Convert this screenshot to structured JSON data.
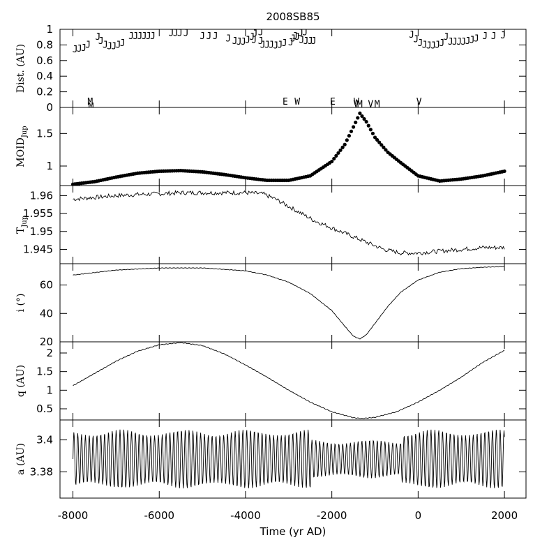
{
  "chart_data": {
    "type": "line",
    "title": "2008SB85",
    "xlabel": "Time (yr AD)",
    "x_range": [
      -8300,
      2500
    ],
    "x_ticks": [
      -8000,
      -6000,
      -4000,
      -2000,
      0,
      2000
    ],
    "x_tick_labels": [
      "-8000",
      "-6000",
      "-4000",
      "-2000",
      "0",
      "2000"
    ],
    "grid": false,
    "panels": [
      {
        "id": "dist",
        "ylabel": "Dist. (AU)",
        "ylim": [
          0,
          1
        ],
        "yticks": [
          0,
          0.2,
          0.4,
          0.6,
          0.8,
          1
        ],
        "ytick_labels": [
          "0",
          "0.2",
          "0.4",
          "0.6",
          "0.8",
          "1"
        ],
        "series": [
          {
            "marker": "J",
            "points": [
              [
                -7950,
                0.74
              ],
              [
                -7850,
                0.75
              ],
              [
                -7750,
                0.76
              ],
              [
                -7650,
                0.8
              ],
              [
                -7420,
                0.9
              ],
              [
                -7350,
                0.85
              ],
              [
                -7250,
                0.8
              ],
              [
                -7150,
                0.78
              ],
              [
                -7050,
                0.78
              ],
              [
                -6950,
                0.8
              ],
              [
                -6850,
                0.82
              ],
              [
                -6650,
                0.91
              ],
              [
                -6550,
                0.91
              ],
              [
                -6450,
                0.91
              ],
              [
                -6350,
                0.91
              ],
              [
                -6250,
                0.91
              ],
              [
                -6150,
                0.91
              ],
              [
                -5720,
                0.95
              ],
              [
                -5620,
                0.95
              ],
              [
                -5520,
                0.95
              ],
              [
                -5380,
                0.95
              ],
              [
                -5000,
                0.91
              ],
              [
                -4850,
                0.91
              ],
              [
                -4700,
                0.91
              ],
              [
                -4400,
                0.88
              ],
              [
                -4250,
                0.85
              ],
              [
                -4150,
                0.84
              ],
              [
                -4050,
                0.84
              ],
              [
                -3950,
                0.86
              ],
              [
                -3850,
                0.9
              ],
              [
                -3780,
                0.94
              ],
              [
                -3650,
                0.96
              ],
              [
                -3800,
                0.86
              ],
              [
                -3650,
                0.85
              ],
              [
                -3600,
                0.8
              ],
              [
                -3500,
                0.8
              ],
              [
                -3400,
                0.8
              ],
              [
                -3300,
                0.79
              ],
              [
                -3200,
                0.8
              ],
              [
                -3100,
                0.82
              ],
              [
                -2950,
                0.83
              ],
              [
                -2900,
                0.88
              ],
              [
                -2850,
                0.91
              ],
              [
                -2800,
                0.9
              ],
              [
                -2700,
                0.86
              ],
              [
                -2600,
                0.85
              ],
              [
                -2500,
                0.85
              ],
              [
                -2420,
                0.85
              ],
              [
                -2720,
                0.95
              ],
              [
                -2620,
                0.96
              ],
              [
                -150,
                0.93
              ],
              [
                -50,
                0.87
              ],
              [
                50,
                0.82
              ],
              [
                150,
                0.8
              ],
              [
                250,
                0.79
              ],
              [
                350,
                0.79
              ],
              [
                450,
                0.8
              ],
              [
                550,
                0.82
              ],
              [
                650,
                0.9
              ],
              [
                750,
                0.84
              ],
              [
                850,
                0.84
              ],
              [
                950,
                0.84
              ],
              [
                1050,
                0.84
              ],
              [
                1150,
                0.85
              ],
              [
                1250,
                0.86
              ],
              [
                1350,
                0.88
              ],
              [
                1550,
                0.91
              ],
              [
                1750,
                0.91
              ],
              [
                1970,
                0.92
              ]
            ]
          },
          {
            "marker": "M",
            "points": [
              [
                -7600,
                0.07
              ],
              [
                -7580,
                0.01
              ],
              [
                -1350,
                0.04
              ],
              [
                -950,
                0.04
              ]
            ]
          },
          {
            "marker": "E",
            "points": [
              [
                -3080,
                0.07
              ],
              [
                -1980,
                0.07
              ]
            ]
          },
          {
            "marker": "W",
            "points": [
              [
                -2800,
                0.07
              ],
              [
                -1430,
                0.07
              ]
            ]
          },
          {
            "marker": "V",
            "points": [
              [
                -1440,
                0.04
              ],
              [
                -1100,
                0.04
              ],
              [
                20,
                0.07
              ]
            ]
          }
        ]
      },
      {
        "id": "moid",
        "ylabel": "MOID",
        "ylabel_sub": "Jup",
        "ylim": [
          0.7,
          1.9
        ],
        "yticks": [
          1,
          1.5
        ],
        "ytick_labels": [
          "1",
          "1.5"
        ],
        "style": "dots",
        "series": [
          {
            "points": [
              [
                -8000,
                0.72
              ],
              [
                -7500,
                0.76
              ],
              [
                -7000,
                0.83
              ],
              [
                -6500,
                0.89
              ],
              [
                -6000,
                0.92
              ],
              [
                -5500,
                0.93
              ],
              [
                -5000,
                0.91
              ],
              [
                -4500,
                0.87
              ],
              [
                -4000,
                0.82
              ],
              [
                -3500,
                0.78
              ],
              [
                -3000,
                0.78
              ],
              [
                -2500,
                0.85
              ],
              [
                -2000,
                1.07
              ],
              [
                -1700,
                1.33
              ],
              [
                -1500,
                1.6
              ],
              [
                -1350,
                1.81
              ],
              [
                -1200,
                1.68
              ],
              [
                -1000,
                1.44
              ],
              [
                -700,
                1.21
              ],
              [
                -400,
                1.05
              ],
              [
                0,
                0.85
              ],
              [
                500,
                0.77
              ],
              [
                1000,
                0.8
              ],
              [
                1500,
                0.85
              ],
              [
                2000,
                0.92
              ]
            ]
          }
        ]
      },
      {
        "id": "tjup",
        "ylabel": "T",
        "ylabel_sub": "Jup",
        "ylim": [
          1.941,
          1.9628
        ],
        "yticks": [
          1.945,
          1.95,
          1.955,
          1.96
        ],
        "ytick_labels": [
          "1.945",
          "1.95",
          "1.955",
          "1.96"
        ],
        "style": "jagged",
        "series": [
          {
            "points": [
              [
                -8000,
                1.959
              ],
              [
                -7500,
                1.9595
              ],
              [
                -7000,
                1.96
              ],
              [
                -6500,
                1.9603
              ],
              [
                -6000,
                1.9605
              ],
              [
                -5500,
                1.9608
              ],
              [
                -5000,
                1.9608
              ],
              [
                -4500,
                1.9608
              ],
              [
                -4000,
                1.9608
              ],
              [
                -3600,
                1.9605
              ],
              [
                -3300,
                1.959
              ],
              [
                -3000,
                1.957
              ],
              [
                -2700,
                1.955
              ],
              [
                -2400,
                1.953
              ],
              [
                -2000,
                1.951
              ],
              [
                -1600,
                1.949
              ],
              [
                -1200,
                1.947
              ],
              [
                -800,
                1.945
              ],
              [
                -400,
                1.944
              ],
              [
                0,
                1.944
              ],
              [
                500,
                1.9445
              ],
              [
                1000,
                1.945
              ],
              [
                1500,
                1.9455
              ],
              [
                2000,
                1.9455
              ]
            ]
          }
        ]
      },
      {
        "id": "incl",
        "ylabel": "i (°)",
        "ylim": [
          20,
          75
        ],
        "yticks": [
          20,
          40,
          60
        ],
        "ytick_labels": [
          "20",
          "40",
          "60"
        ],
        "style": "line",
        "series": [
          {
            "points": [
              [
                -8000,
                67
              ],
              [
                -7000,
                70.5
              ],
              [
                -6000,
                72
              ],
              [
                -5000,
                72
              ],
              [
                -4000,
                70
              ],
              [
                -3500,
                67
              ],
              [
                -3000,
                62
              ],
              [
                -2500,
                54
              ],
              [
                -2000,
                42
              ],
              [
                -1700,
                31
              ],
              [
                -1500,
                24
              ],
              [
                -1350,
                22
              ],
              [
                -1200,
                25
              ],
              [
                -1000,
                33
              ],
              [
                -700,
                45
              ],
              [
                -400,
                55
              ],
              [
                0,
                63.5
              ],
              [
                500,
                69
              ],
              [
                1000,
                71.5
              ],
              [
                1500,
                72.5
              ],
              [
                2000,
                73
              ]
            ]
          }
        ]
      },
      {
        "id": "q",
        "ylabel": "q (AU)",
        "ylim": [
          0.2,
          2.3
        ],
        "yticks": [
          0.5,
          1,
          1.5,
          2
        ],
        "ytick_labels": [
          "0.5",
          "1",
          "1.5",
          "2"
        ],
        "style": "line",
        "series": [
          {
            "points": [
              [
                -8000,
                1.12
              ],
              [
                -7500,
                1.45
              ],
              [
                -7000,
                1.78
              ],
              [
                -6500,
                2.05
              ],
              [
                -6000,
                2.22
              ],
              [
                -5500,
                2.28
              ],
              [
                -5000,
                2.2
              ],
              [
                -4500,
                1.98
              ],
              [
                -4000,
                1.68
              ],
              [
                -3500,
                1.35
              ],
              [
                -3000,
                1.0
              ],
              [
                -2500,
                0.68
              ],
              [
                -2000,
                0.42
              ],
              [
                -1500,
                0.26
              ],
              [
                -1300,
                0.24
              ],
              [
                -1000,
                0.27
              ],
              [
                -500,
                0.42
              ],
              [
                0,
                0.68
              ],
              [
                500,
                1.0
              ],
              [
                1000,
                1.35
              ],
              [
                1500,
                1.75
              ],
              [
                2000,
                2.07
              ]
            ]
          }
        ]
      },
      {
        "id": "a",
        "ylabel": "a (AU)",
        "ylim": [
          3.3635,
          3.4125
        ],
        "yticks": [
          3.38,
          3.4
        ],
        "ytick_labels": [
          "3.38",
          "3.4"
        ],
        "style": "oscillation",
        "series": [
          {
            "description_free": true,
            "points": [
              [
                -8000,
                3.37
              ],
              [
                -7980,
                3.405
              ],
              [
                -6000,
                3.372
              ],
              [
                -5980,
                3.407
              ],
              [
                -4000,
                3.371
              ],
              [
                -3980,
                3.407
              ],
              [
                -2000,
                3.376
              ],
              [
                -1980,
                3.402
              ],
              [
                0,
                3.371
              ],
              [
                20,
                3.406
              ],
              [
                2000,
                3.37
              ],
              [
                1980,
                3.405
              ]
            ]
          }
        ]
      }
    ]
  }
}
